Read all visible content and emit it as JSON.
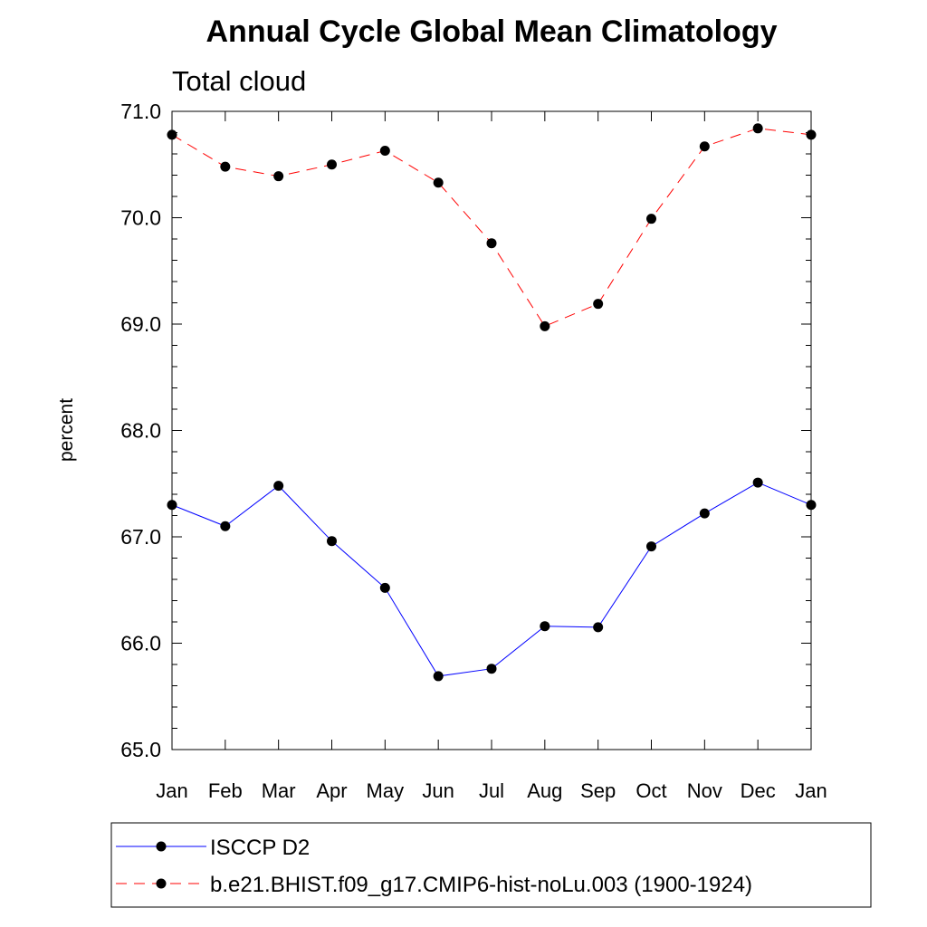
{
  "chart_data": {
    "type": "line",
    "title": "Annual Cycle Global Mean Climatology",
    "subtitle": "Total cloud",
    "xlabel": "",
    "ylabel": "percent",
    "categories": [
      "Jan",
      "Feb",
      "Mar",
      "Apr",
      "May",
      "Jun",
      "Jul",
      "Aug",
      "Sep",
      "Oct",
      "Nov",
      "Dec",
      "Jan"
    ],
    "ylim": [
      65.0,
      71.0
    ],
    "yticks": [
      "65.0",
      "66.0",
      "67.0",
      "68.0",
      "69.0",
      "70.0",
      "71.0"
    ],
    "grid": false,
    "legend_position": "bottom",
    "series": [
      {
        "name": "ISCCP D2",
        "color": "#0000ff",
        "line_style": "solid",
        "marker": "filled-circle",
        "values": [
          67.3,
          67.1,
          67.48,
          66.96,
          66.52,
          65.69,
          65.76,
          66.16,
          66.15,
          66.91,
          67.22,
          67.51,
          67.3
        ]
      },
      {
        "name": "b.e21.BHIST.f09_g17.CMIP6-hist-noLu.003 (1900-1924)",
        "color": "#ff0000",
        "line_style": "dashed",
        "marker": "filled-circle",
        "values": [
          70.78,
          70.48,
          70.39,
          70.5,
          70.63,
          70.33,
          69.76,
          68.98,
          69.19,
          69.99,
          70.67,
          70.84,
          70.78
        ]
      }
    ]
  }
}
